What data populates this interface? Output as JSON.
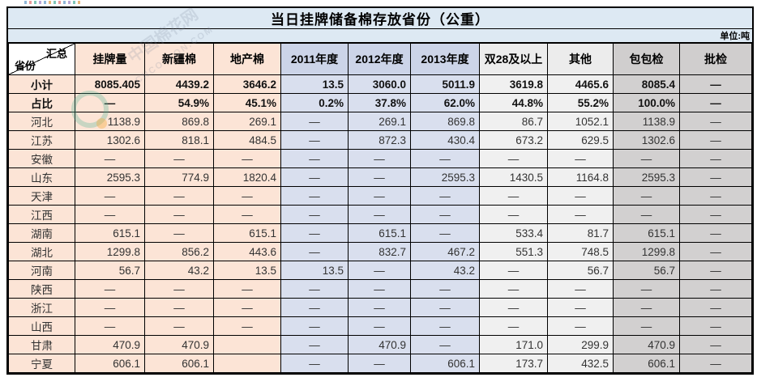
{
  "chart_data": {
    "type": "table",
    "title": "当日挂牌储备棉存放省份（公重）",
    "unit": "单位:吨",
    "corner_header": {
      "top_right": "汇总",
      "bottom_left": "省份"
    },
    "columns": [
      "挂牌量",
      "新疆棉",
      "地产棉",
      "2011年度",
      "2012年度",
      "2013年度",
      "双28及以上",
      "其他",
      "包包检",
      "批检"
    ],
    "column_groups": [
      "peach",
      "peach",
      "peach",
      "lavender",
      "lavender",
      "lavender",
      "lightgray",
      "lightgray",
      "gray",
      "gray"
    ],
    "rows": [
      {
        "label": "小计",
        "bold": true,
        "values": [
          "8085.405",
          "4439.2",
          "3646.2",
          "13.5",
          "3060.0",
          "5011.9",
          "3619.8",
          "4465.6",
          "8085.4",
          "—"
        ]
      },
      {
        "label": "占比",
        "bold": true,
        "values": [
          "—",
          "54.9%",
          "45.1%",
          "0.2%",
          "37.8%",
          "62.0%",
          "44.8%",
          "55.2%",
          "100.0%",
          "—"
        ]
      },
      {
        "label": "河北",
        "bold": false,
        "values": [
          "1138.9",
          "869.8",
          "269.1",
          "—",
          "269.1",
          "869.8",
          "86.7",
          "1052.1",
          "1138.9",
          "—"
        ]
      },
      {
        "label": "江苏",
        "bold": false,
        "values": [
          "1302.6",
          "818.1",
          "484.5",
          "—",
          "872.3",
          "430.4",
          "673.2",
          "629.5",
          "1302.6",
          "—"
        ]
      },
      {
        "label": "安徽",
        "bold": false,
        "values": [
          "—",
          "—",
          "—",
          "—",
          "—",
          "—",
          "—",
          "—",
          "—",
          "—"
        ]
      },
      {
        "label": "山东",
        "bold": false,
        "values": [
          "2595.3",
          "774.9",
          "1820.4",
          "—",
          "—",
          "2595.3",
          "1430.5",
          "1164.8",
          "2595.3",
          "—"
        ]
      },
      {
        "label": "天津",
        "bold": false,
        "values": [
          "—",
          "—",
          "—",
          "—",
          "—",
          "—",
          "—",
          "—",
          "—",
          "—"
        ]
      },
      {
        "label": "江西",
        "bold": false,
        "values": [
          "—",
          "—",
          "—",
          "—",
          "—",
          "—",
          "—",
          "—",
          "—",
          "—"
        ]
      },
      {
        "label": "湖南",
        "bold": false,
        "values": [
          "615.1",
          "—",
          "615.1",
          "—",
          "615.1",
          "—",
          "533.4",
          "81.7",
          "615.1",
          "—"
        ]
      },
      {
        "label": "湖北",
        "bold": false,
        "values": [
          "1299.8",
          "856.2",
          "443.6",
          "—",
          "832.7",
          "467.2",
          "551.3",
          "748.5",
          "1299.8",
          "—"
        ]
      },
      {
        "label": "河南",
        "bold": false,
        "values": [
          "56.7",
          "43.2",
          "13.5",
          "13.5",
          "—",
          "43.2",
          "—",
          "56.7",
          "56.7",
          "—"
        ]
      },
      {
        "label": "陕西",
        "bold": false,
        "values": [
          "—",
          "—",
          "—",
          "—",
          "—",
          "—",
          "—",
          "—",
          "—",
          "—"
        ]
      },
      {
        "label": "浙江",
        "bold": false,
        "values": [
          "—",
          "—",
          "—",
          "—",
          "—",
          "—",
          "—",
          "—",
          "—",
          "—"
        ]
      },
      {
        "label": "山西",
        "bold": false,
        "values": [
          "—",
          "—",
          "—",
          "—",
          "—",
          "—",
          "—",
          "—",
          "—",
          "—"
        ]
      },
      {
        "label": "甘肃",
        "bold": false,
        "values": [
          "470.9",
          "470.9",
          "",
          "—",
          "470.9",
          "—",
          "171.0",
          "299.9",
          "470.9",
          "—"
        ]
      },
      {
        "label": "宁夏",
        "bold": false,
        "values": [
          "606.1",
          "606.1",
          "",
          "—",
          "—",
          "606.1",
          "173.7",
          "432.5",
          "606.1",
          "—"
        ]
      }
    ]
  },
  "watermarks": [
    "中国棉花网",
    "CNCOTTON.COM"
  ],
  "decor": {
    "dot_colors": [
      "#8fb7d8",
      "#e89a9a",
      "#7fc6b8",
      "#b9a7d8",
      "#8fb7d8",
      "#e8b87a",
      "#7fc6b8",
      "#e89a9a",
      "#8fb7d8",
      "#b9a7d8",
      "#7fc6b8",
      "#e8b87a"
    ]
  },
  "colors": {
    "title_band": "#dde9f3",
    "peach": "#fce4d6",
    "lavender_header": "#ccd4e8",
    "lavender_cell": "#d9dfee",
    "lightgray_cell": "#f0f0f0",
    "gray_cell": "#d0cece",
    "border": "#000000"
  }
}
